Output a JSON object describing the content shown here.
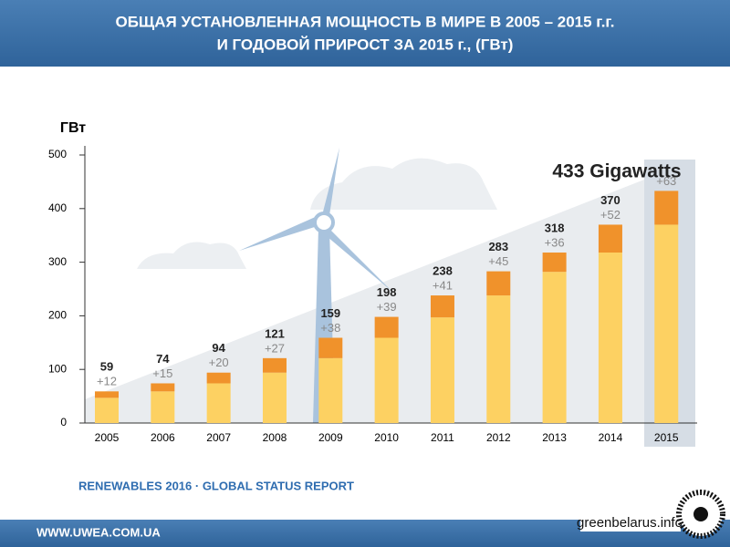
{
  "header": {
    "title_line1": "ОБЩАЯ УСТАНОВЛЕННАЯ МОЩНОСТЬ В МИРЕ В 2005 – 2015 г.г.",
    "title_line2": "И ГОДОВОЙ ПРИРОСТ ЗА 2015 г., (ГВт)"
  },
  "chart_data": {
    "type": "stacked_bar",
    "y_label": "ГВт",
    "annotation": "433 Gigawatts",
    "categories": [
      "2005",
      "2006",
      "2007",
      "2008",
      "2009",
      "2010",
      "2011",
      "2012",
      "2013",
      "2014",
      "2015"
    ],
    "series": [
      {
        "name": "Установленная мощность",
        "color": "#fdd162",
        "values": [
          47,
          59,
          74,
          94,
          121,
          159,
          197,
          238,
          282,
          318,
          370
        ]
      },
      {
        "name": "Годовой прирост",
        "color": "#f0922b",
        "values": [
          12,
          15,
          20,
          27,
          38,
          39,
          41,
          45,
          36,
          52,
          63
        ],
        "value_labels": [
          "+12",
          "+15",
          "+20",
          "+27",
          "+38",
          "+39",
          "+41",
          "+45",
          "+36",
          "+52",
          "+63"
        ]
      }
    ],
    "totals": [
      59,
      74,
      94,
      121,
      159,
      198,
      238,
      283,
      318,
      370,
      null
    ],
    "ylim": [
      0,
      500
    ],
    "yticks": [
      0,
      100,
      200,
      300,
      400,
      500
    ]
  },
  "source": "RENEWABLES 2016 · GLOBAL STATUS REPORT",
  "footer": {
    "site": "WWW.UWEA.COM.UA",
    "logo": "greenbelarus.info"
  }
}
